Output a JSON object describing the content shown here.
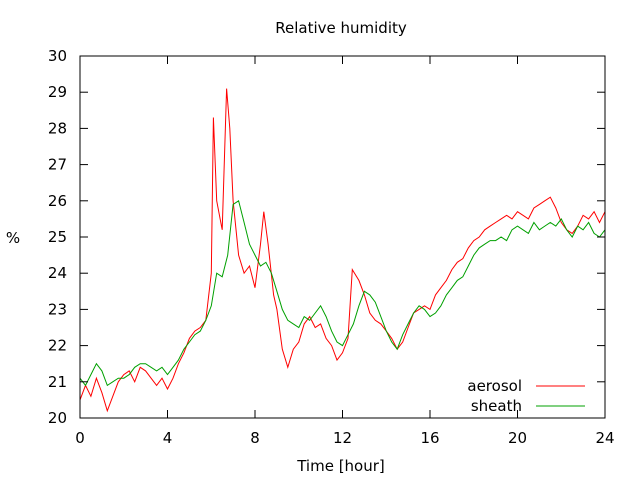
{
  "chart_data": {
    "type": "line",
    "title": "Relative humidity",
    "xlabel": "Time [hour]",
    "ylabel": "%",
    "xlim": [
      0,
      24
    ],
    "ylim": [
      20,
      30
    ],
    "xticks": [
      0,
      4,
      8,
      12,
      16,
      20,
      24
    ],
    "yticks": [
      20,
      21,
      22,
      23,
      24,
      25,
      26,
      27,
      28,
      29,
      30
    ],
    "grid": false,
    "legend_position": "bottom-right",
    "series": [
      {
        "name": "aerosol",
        "color": "#ff0000",
        "points": [
          [
            0.0,
            20.5
          ],
          [
            0.25,
            20.9
          ],
          [
            0.5,
            20.6
          ],
          [
            0.75,
            21.1
          ],
          [
            1.0,
            20.7
          ],
          [
            1.25,
            20.2
          ],
          [
            1.5,
            20.6
          ],
          [
            1.75,
            21.0
          ],
          [
            2.0,
            21.2
          ],
          [
            2.25,
            21.3
          ],
          [
            2.5,
            21.0
          ],
          [
            2.75,
            21.4
          ],
          [
            3.0,
            21.3
          ],
          [
            3.25,
            21.1
          ],
          [
            3.5,
            20.9
          ],
          [
            3.75,
            21.1
          ],
          [
            4.0,
            20.8
          ],
          [
            4.25,
            21.1
          ],
          [
            4.5,
            21.5
          ],
          [
            4.75,
            21.8
          ],
          [
            5.0,
            22.2
          ],
          [
            5.25,
            22.4
          ],
          [
            5.5,
            22.5
          ],
          [
            5.75,
            22.7
          ],
          [
            6.0,
            24.0
          ],
          [
            6.1,
            28.3
          ],
          [
            6.25,
            26.0
          ],
          [
            6.5,
            25.2
          ],
          [
            6.7,
            29.1
          ],
          [
            6.85,
            28.0
          ],
          [
            7.0,
            26.0
          ],
          [
            7.25,
            24.5
          ],
          [
            7.5,
            24.0
          ],
          [
            7.75,
            24.2
          ],
          [
            8.0,
            23.6
          ],
          [
            8.25,
            24.8
          ],
          [
            8.4,
            25.7
          ],
          [
            8.6,
            24.8
          ],
          [
            8.85,
            23.4
          ],
          [
            9.0,
            23.0
          ],
          [
            9.25,
            21.9
          ],
          [
            9.5,
            21.4
          ],
          [
            9.75,
            21.9
          ],
          [
            10.0,
            22.1
          ],
          [
            10.25,
            22.6
          ],
          [
            10.5,
            22.8
          ],
          [
            10.75,
            22.5
          ],
          [
            11.0,
            22.6
          ],
          [
            11.25,
            22.2
          ],
          [
            11.5,
            22.0
          ],
          [
            11.75,
            21.6
          ],
          [
            12.0,
            21.8
          ],
          [
            12.25,
            22.2
          ],
          [
            12.45,
            24.1
          ],
          [
            12.75,
            23.8
          ],
          [
            13.0,
            23.4
          ],
          [
            13.25,
            22.9
          ],
          [
            13.5,
            22.7
          ],
          [
            13.75,
            22.6
          ],
          [
            14.0,
            22.4
          ],
          [
            14.25,
            22.2
          ],
          [
            14.5,
            21.9
          ],
          [
            14.75,
            22.1
          ],
          [
            15.0,
            22.5
          ],
          [
            15.25,
            22.9
          ],
          [
            15.5,
            23.0
          ],
          [
            15.75,
            23.1
          ],
          [
            16.0,
            23.0
          ],
          [
            16.25,
            23.4
          ],
          [
            16.5,
            23.6
          ],
          [
            16.75,
            23.8
          ],
          [
            17.0,
            24.1
          ],
          [
            17.25,
            24.3
          ],
          [
            17.5,
            24.4
          ],
          [
            17.75,
            24.7
          ],
          [
            18.0,
            24.9
          ],
          [
            18.25,
            25.0
          ],
          [
            18.5,
            25.2
          ],
          [
            18.75,
            25.3
          ],
          [
            19.0,
            25.4
          ],
          [
            19.25,
            25.5
          ],
          [
            19.5,
            25.6
          ],
          [
            19.75,
            25.5
          ],
          [
            20.0,
            25.7
          ],
          [
            20.25,
            25.6
          ],
          [
            20.5,
            25.5
          ],
          [
            20.75,
            25.8
          ],
          [
            21.0,
            25.9
          ],
          [
            21.25,
            26.0
          ],
          [
            21.5,
            26.1
          ],
          [
            21.75,
            25.8
          ],
          [
            22.0,
            25.4
          ],
          [
            22.25,
            25.2
          ],
          [
            22.5,
            25.1
          ],
          [
            22.75,
            25.3
          ],
          [
            23.0,
            25.6
          ],
          [
            23.25,
            25.5
          ],
          [
            23.5,
            25.7
          ],
          [
            23.75,
            25.4
          ],
          [
            24.0,
            25.7
          ]
        ]
      },
      {
        "name": "sheath",
        "color": "#00a000",
        "points": [
          [
            0.0,
            21.1
          ],
          [
            0.25,
            20.9
          ],
          [
            0.5,
            21.2
          ],
          [
            0.75,
            21.5
          ],
          [
            1.0,
            21.3
          ],
          [
            1.25,
            20.9
          ],
          [
            1.5,
            21.0
          ],
          [
            1.75,
            21.1
          ],
          [
            2.0,
            21.1
          ],
          [
            2.25,
            21.2
          ],
          [
            2.5,
            21.4
          ],
          [
            2.75,
            21.5
          ],
          [
            3.0,
            21.5
          ],
          [
            3.25,
            21.4
          ],
          [
            3.5,
            21.3
          ],
          [
            3.75,
            21.4
          ],
          [
            4.0,
            21.2
          ],
          [
            4.25,
            21.4
          ],
          [
            4.5,
            21.6
          ],
          [
            4.75,
            21.9
          ],
          [
            5.0,
            22.1
          ],
          [
            5.25,
            22.3
          ],
          [
            5.5,
            22.4
          ],
          [
            5.75,
            22.7
          ],
          [
            6.0,
            23.1
          ],
          [
            6.25,
            24.0
          ],
          [
            6.5,
            23.9
          ],
          [
            6.75,
            24.5
          ],
          [
            7.0,
            25.9
          ],
          [
            7.25,
            26.0
          ],
          [
            7.5,
            25.4
          ],
          [
            7.75,
            24.8
          ],
          [
            8.0,
            24.5
          ],
          [
            8.25,
            24.2
          ],
          [
            8.5,
            24.3
          ],
          [
            8.75,
            24.0
          ],
          [
            9.0,
            23.5
          ],
          [
            9.25,
            23.0
          ],
          [
            9.5,
            22.7
          ],
          [
            9.75,
            22.6
          ],
          [
            10.0,
            22.5
          ],
          [
            10.25,
            22.8
          ],
          [
            10.5,
            22.7
          ],
          [
            10.75,
            22.9
          ],
          [
            11.0,
            23.1
          ],
          [
            11.25,
            22.8
          ],
          [
            11.5,
            22.4
          ],
          [
            11.75,
            22.1
          ],
          [
            12.0,
            22.0
          ],
          [
            12.25,
            22.3
          ],
          [
            12.5,
            22.6
          ],
          [
            12.75,
            23.1
          ],
          [
            13.0,
            23.5
          ],
          [
            13.25,
            23.4
          ],
          [
            13.5,
            23.2
          ],
          [
            13.75,
            22.8
          ],
          [
            14.0,
            22.4
          ],
          [
            14.25,
            22.1
          ],
          [
            14.5,
            21.9
          ],
          [
            14.75,
            22.3
          ],
          [
            15.0,
            22.6
          ],
          [
            15.25,
            22.9
          ],
          [
            15.5,
            23.1
          ],
          [
            15.75,
            23.0
          ],
          [
            16.0,
            22.8
          ],
          [
            16.25,
            22.9
          ],
          [
            16.5,
            23.1
          ],
          [
            16.75,
            23.4
          ],
          [
            17.0,
            23.6
          ],
          [
            17.25,
            23.8
          ],
          [
            17.5,
            23.9
          ],
          [
            17.75,
            24.2
          ],
          [
            18.0,
            24.5
          ],
          [
            18.25,
            24.7
          ],
          [
            18.5,
            24.8
          ],
          [
            18.75,
            24.9
          ],
          [
            19.0,
            24.9
          ],
          [
            19.25,
            25.0
          ],
          [
            19.5,
            24.9
          ],
          [
            19.75,
            25.2
          ],
          [
            20.0,
            25.3
          ],
          [
            20.25,
            25.2
          ],
          [
            20.5,
            25.1
          ],
          [
            20.75,
            25.4
          ],
          [
            21.0,
            25.2
          ],
          [
            21.25,
            25.3
          ],
          [
            21.5,
            25.4
          ],
          [
            21.75,
            25.3
          ],
          [
            22.0,
            25.5
          ],
          [
            22.25,
            25.2
          ],
          [
            22.5,
            25.0
          ],
          [
            22.75,
            25.3
          ],
          [
            23.0,
            25.2
          ],
          [
            23.25,
            25.4
          ],
          [
            23.5,
            25.1
          ],
          [
            23.75,
            25.0
          ],
          [
            24.0,
            25.2
          ]
        ]
      }
    ]
  }
}
